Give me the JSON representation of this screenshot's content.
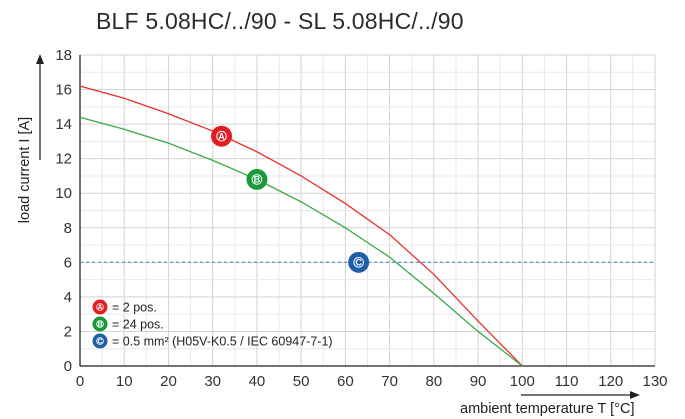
{
  "title": "BLF 5.08HC/../90 - SL 5.08HC/../90",
  "chart_data": {
    "type": "line",
    "title": "BLF 5.08HC/../90 - SL 5.08HC/../90",
    "xlabel": "ambient temperature T [°C]",
    "ylabel": "load current I [A]",
    "xlim": [
      0,
      130
    ],
    "ylim": [
      0,
      18
    ],
    "xticks": [
      0,
      10,
      20,
      30,
      40,
      50,
      60,
      70,
      80,
      90,
      100,
      110,
      120,
      130
    ],
    "yticks": [
      0,
      2,
      4,
      6,
      8,
      10,
      12,
      14,
      16,
      18
    ],
    "grid": true,
    "series": [
      {
        "marker": "A",
        "color": "#e8312f",
        "x": [
          0,
          10,
          20,
          30,
          40,
          50,
          60,
          70,
          80,
          90,
          95,
          100
        ],
        "y": [
          16.2,
          15.5,
          14.6,
          13.6,
          12.4,
          11.0,
          9.4,
          7.6,
          5.3,
          2.6,
          1.3,
          0
        ]
      },
      {
        "marker": "B",
        "color": "#3aaa4a",
        "x": [
          0,
          10,
          20,
          30,
          40,
          50,
          60,
          70,
          80,
          90,
          95,
          100
        ],
        "y": [
          14.4,
          13.7,
          12.9,
          11.9,
          10.8,
          9.5,
          8.0,
          6.3,
          4.2,
          2.0,
          1.0,
          0
        ]
      },
      {
        "marker": "C",
        "color": "#4a90d0",
        "style": "dashed",
        "x": [
          0,
          130
        ],
        "y": [
          6,
          6
        ]
      }
    ],
    "markers": [
      {
        "letter": "A",
        "x": 32,
        "y": 13.3,
        "color": "#e31e24"
      },
      {
        "letter": "B",
        "x": 40,
        "y": 10.8,
        "color": "#1a9a3a"
      },
      {
        "letter": "C",
        "x": 63,
        "y": 6.0,
        "color": "#1f5fa8"
      }
    ],
    "legend_position": "bottom-left",
    "legend": [
      {
        "letter": "A",
        "text": "= 2 pos.",
        "color": "#e31e24"
      },
      {
        "letter": "B",
        "text": "= 24 pos.",
        "color": "#1a9a3a"
      },
      {
        "letter": "C",
        "text": "= 0.5 mm² (H05V-K0.5 / IEC 60947-7-1)",
        "color": "#1f5fa8"
      }
    ]
  }
}
